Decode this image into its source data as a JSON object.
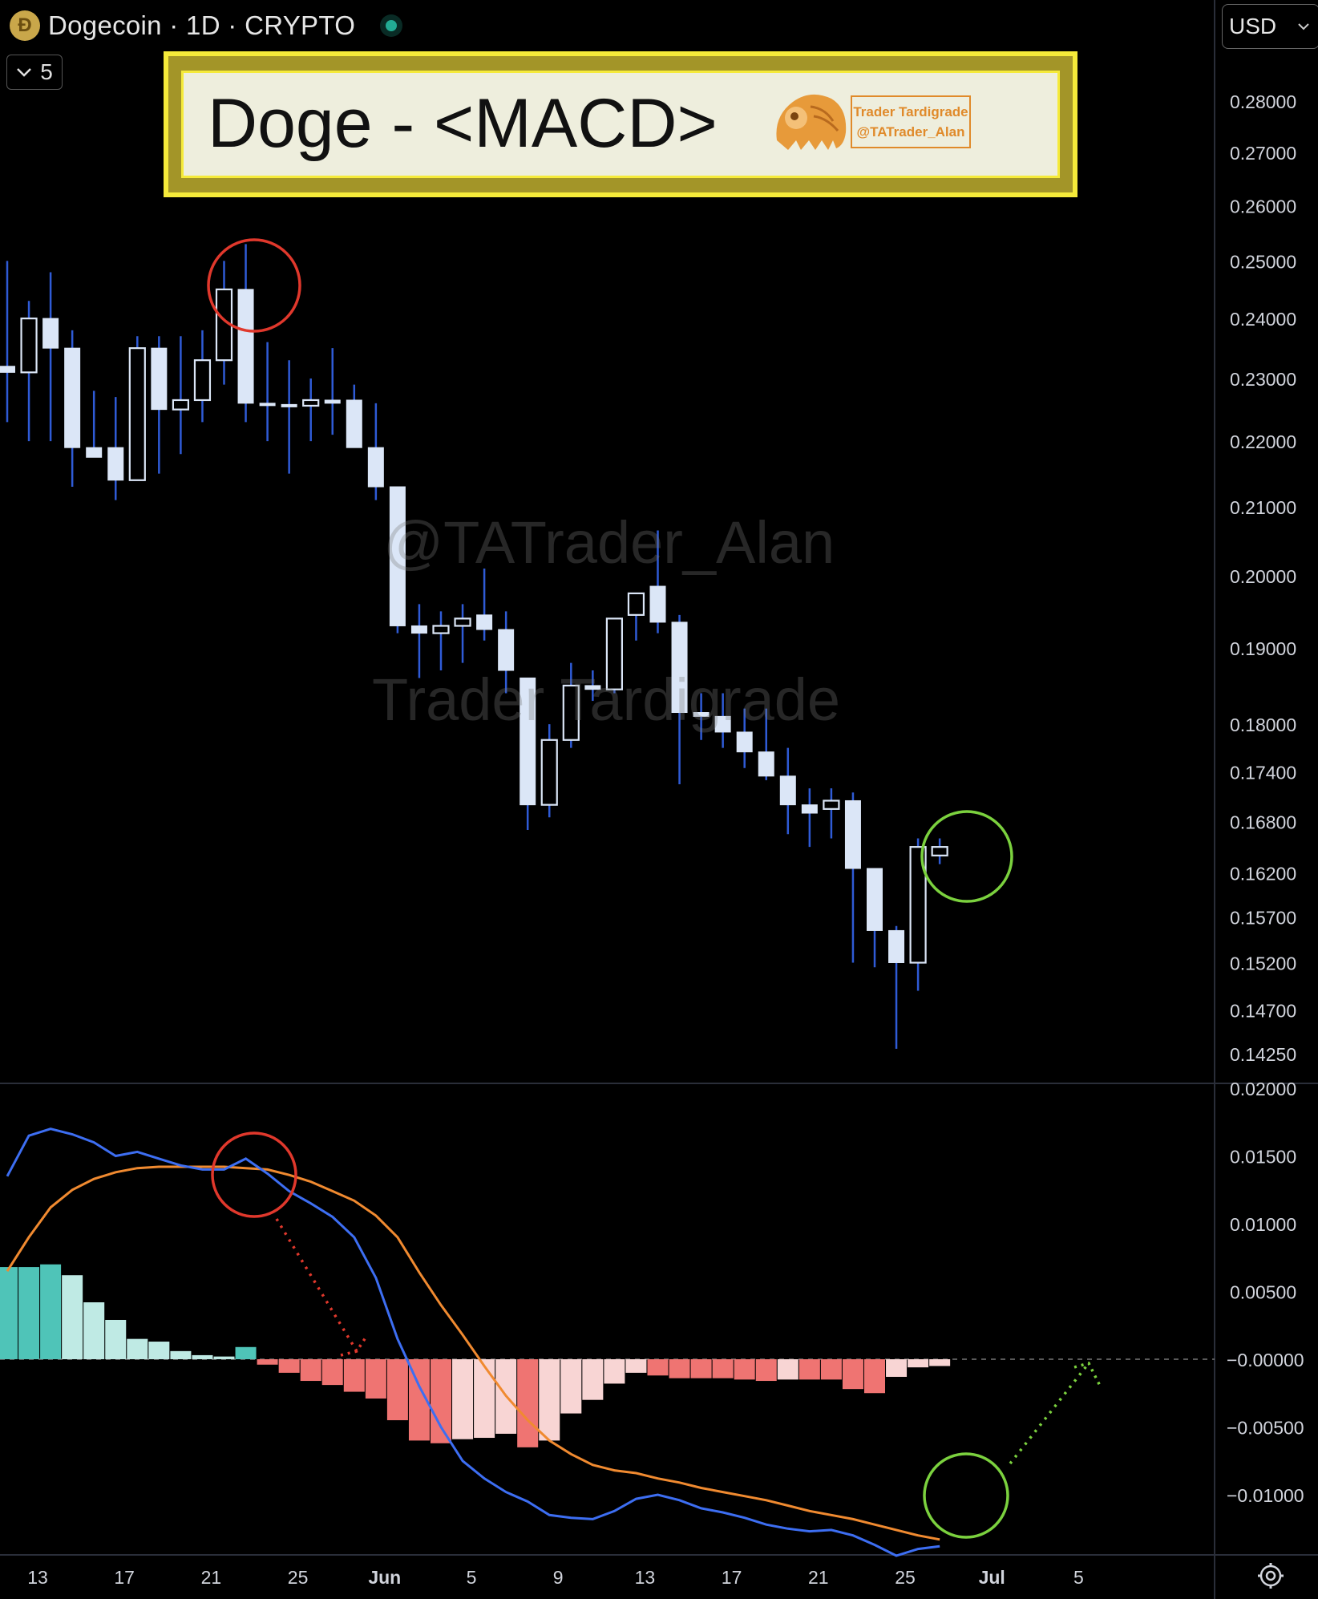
{
  "header": {
    "coin_icon": "dogecoin-coin-icon",
    "title": "Dogecoin · 1D · CRYPTO",
    "status_color": "#22ab94",
    "hide_count": "5"
  },
  "currency": {
    "label": "USD"
  },
  "banner": {
    "title": "Doge - <MACD>",
    "brand_line1": "Trader Tardigrade",
    "brand_line2": "@TATrader_Alan"
  },
  "watermarks": {
    "line1": "@TATrader_Alan",
    "line2": "Trader Tardigrade"
  },
  "colors": {
    "candle_body": "#dbe6f7",
    "candle_wick": "#2f5bd6",
    "macd_line": "#3d6ef2",
    "signal_line": "#f08a30",
    "hist_pos_strong": "#4fc4b8",
    "hist_pos_weak": "#bfeae4",
    "hist_neg_strong": "#ef7472",
    "hist_neg_weak": "#f8d5d4",
    "circle_red": "#e0382c",
    "circle_green": "#7bd13e"
  },
  "chart_data": [
    {
      "type": "candlestick",
      "title": "",
      "price_axis_ticks": [
        "0.28000",
        "0.27000",
        "0.26000",
        "0.25000",
        "0.24000",
        "0.23000",
        "0.22000",
        "0.21000",
        "0.20000",
        "0.19000",
        "0.18000",
        "0.17400",
        "0.16800",
        "0.16200",
        "0.15700",
        "0.15200",
        "0.14700",
        "0.14250"
      ],
      "price_axis_values": [
        0.28,
        0.27,
        0.26,
        0.25,
        0.24,
        0.23,
        0.22,
        0.21,
        0.2,
        0.19,
        0.18,
        0.174,
        0.168,
        0.162,
        0.157,
        0.152,
        0.147,
        0.1425
      ],
      "ylim": [
        0.138,
        0.29
      ],
      "log_scale": true,
      "date_ticks": [
        "13",
        "17",
        "21",
        "25",
        "Jun",
        "5",
        "9",
        "13",
        "17",
        "21",
        "25",
        "Jul",
        "5"
      ],
      "date_tick_index": [
        0,
        4,
        8,
        12,
        16,
        20,
        24,
        28,
        32,
        36,
        40,
        44,
        48
      ],
      "candles": [
        {
          "o": 0.232,
          "h": 0.25,
          "l": 0.223,
          "c": 0.231
        },
        {
          "o": 0.231,
          "h": 0.243,
          "l": 0.22,
          "c": 0.24
        },
        {
          "o": 0.24,
          "h": 0.248,
          "l": 0.22,
          "c": 0.235
        },
        {
          "o": 0.235,
          "h": 0.238,
          "l": 0.213,
          "c": 0.219
        },
        {
          "o": 0.219,
          "h": 0.228,
          "l": 0.218,
          "c": 0.2175
        },
        {
          "o": 0.219,
          "h": 0.227,
          "l": 0.211,
          "c": 0.214
        },
        {
          "o": 0.214,
          "h": 0.237,
          "l": 0.214,
          "c": 0.235
        },
        {
          "o": 0.235,
          "h": 0.237,
          "l": 0.215,
          "c": 0.225
        },
        {
          "o": 0.225,
          "h": 0.237,
          "l": 0.218,
          "c": 0.2265
        },
        {
          "o": 0.2265,
          "h": 0.238,
          "l": 0.223,
          "c": 0.233
        },
        {
          "o": 0.233,
          "h": 0.25,
          "l": 0.229,
          "c": 0.245
        },
        {
          "o": 0.245,
          "h": 0.253,
          "l": 0.223,
          "c": 0.226
        },
        {
          "o": 0.226,
          "h": 0.236,
          "l": 0.22,
          "c": 0.2258
        },
        {
          "o": 0.2258,
          "h": 0.233,
          "l": 0.215,
          "c": 0.2256
        },
        {
          "o": 0.2256,
          "h": 0.23,
          "l": 0.22,
          "c": 0.2265
        },
        {
          "o": 0.2265,
          "h": 0.235,
          "l": 0.221,
          "c": 0.226
        },
        {
          "o": 0.2265,
          "h": 0.229,
          "l": 0.219,
          "c": 0.219
        },
        {
          "o": 0.219,
          "h": 0.226,
          "l": 0.211,
          "c": 0.213
        },
        {
          "o": 0.213,
          "h": 0.213,
          "l": 0.192,
          "c": 0.193
        },
        {
          "o": 0.193,
          "h": 0.196,
          "l": 0.186,
          "c": 0.192
        },
        {
          "o": 0.192,
          "h": 0.195,
          "l": 0.187,
          "c": 0.193
        },
        {
          "o": 0.193,
          "h": 0.196,
          "l": 0.188,
          "c": 0.194
        },
        {
          "o": 0.1945,
          "h": 0.201,
          "l": 0.191,
          "c": 0.1925
        },
        {
          "o": 0.1925,
          "h": 0.195,
          "l": 0.184,
          "c": 0.187
        },
        {
          "o": 0.186,
          "h": 0.186,
          "l": 0.167,
          "c": 0.17
        },
        {
          "o": 0.17,
          "h": 0.18,
          "l": 0.1685,
          "c": 0.178
        },
        {
          "o": 0.178,
          "h": 0.188,
          "l": 0.177,
          "c": 0.185
        },
        {
          "o": 0.185,
          "h": 0.187,
          "l": 0.183,
          "c": 0.1845
        },
        {
          "o": 0.1845,
          "h": 0.194,
          "l": 0.184,
          "c": 0.194
        },
        {
          "o": 0.1945,
          "h": 0.196,
          "l": 0.191,
          "c": 0.1975
        },
        {
          "o": 0.1985,
          "h": 0.2065,
          "l": 0.192,
          "c": 0.1935
        },
        {
          "o": 0.1935,
          "h": 0.1945,
          "l": 0.1725,
          "c": 0.1815
        },
        {
          "o": 0.1815,
          "h": 0.184,
          "l": 0.178,
          "c": 0.181
        },
        {
          "o": 0.181,
          "h": 0.184,
          "l": 0.177,
          "c": 0.179
        },
        {
          "o": 0.179,
          "h": 0.182,
          "l": 0.1745,
          "c": 0.1765
        },
        {
          "o": 0.1765,
          "h": 0.182,
          "l": 0.173,
          "c": 0.1735
        },
        {
          "o": 0.1735,
          "h": 0.177,
          "l": 0.1665,
          "c": 0.17
        },
        {
          "o": 0.17,
          "h": 0.172,
          "l": 0.165,
          "c": 0.169
        },
        {
          "o": 0.1695,
          "h": 0.172,
          "l": 0.166,
          "c": 0.1705
        },
        {
          "o": 0.1705,
          "h": 0.1715,
          "l": 0.152,
          "c": 0.1625
        },
        {
          "o": 0.1625,
          "h": 0.1625,
          "l": 0.1515,
          "c": 0.1555
        },
        {
          "o": 0.1555,
          "h": 0.156,
          "l": 0.143,
          "c": 0.152
        },
        {
          "o": 0.152,
          "h": 0.166,
          "l": 0.149,
          "c": 0.165
        },
        {
          "o": 0.164,
          "h": 0.166,
          "l": 0.163,
          "c": 0.165
        }
      ]
    },
    {
      "type": "macd",
      "title": "",
      "y_axis_ticks": [
        "0.02000",
        "0.01500",
        "0.01000",
        "0.00500",
        "−0.00000",
        "−0.00500",
        "−0.01000"
      ],
      "y_axis_values": [
        0.02,
        0.015,
        0.01,
        0.005,
        0,
        -0.005,
        -0.01
      ],
      "ylim": [
        -0.0145,
        0.0205
      ],
      "zero_line_dashed": true,
      "series": [
        {
          "name": "",
          "role": "macd",
          "values": [
            0.0135,
            0.0165,
            0.017,
            0.0166,
            0.016,
            0.015,
            0.0153,
            0.0148,
            0.0143,
            0.014,
            0.014,
            0.0148,
            0.0137,
            0.0124,
            0.0115,
            0.0105,
            0.009,
            0.006,
            0.0015,
            -0.002,
            -0.005,
            -0.0075,
            -0.0088,
            -0.0098,
            -0.0105,
            -0.0115,
            -0.0117,
            -0.0118,
            -0.0112,
            -0.0103,
            -0.01,
            -0.0104,
            -0.011,
            -0.0113,
            -0.0117,
            -0.0122,
            -0.0125,
            -0.0127,
            -0.0126,
            -0.013,
            -0.0137,
            -0.0145,
            -0.014,
            -0.0138
          ]
        },
        {
          "name": "",
          "role": "signal",
          "values": [
            0.0065,
            0.009,
            0.0112,
            0.0125,
            0.0133,
            0.0138,
            0.0141,
            0.0142,
            0.0142,
            0.0142,
            0.0142,
            0.0141,
            0.014,
            0.0136,
            0.0131,
            0.0124,
            0.0117,
            0.0106,
            0.009,
            0.0064,
            0.004,
            0.0018,
            -0.0005,
            -0.0027,
            -0.0045,
            -0.006,
            -0.007,
            -0.0078,
            -0.0082,
            -0.0084,
            -0.0088,
            -0.0091,
            -0.0095,
            -0.0098,
            -0.0101,
            -0.0104,
            -0.0108,
            -0.0112,
            -0.0115,
            -0.0118,
            -0.0122,
            -0.0126,
            -0.013,
            -0.0133
          ]
        }
      ],
      "histogram": [
        0.0068,
        0.0068,
        0.007,
        0.0062,
        0.0042,
        0.0029,
        0.0015,
        0.0013,
        0.0006,
        0.0003,
        0.0002,
        0.0009,
        -0.0004,
        -0.001,
        -0.0016,
        -0.0019,
        -0.0024,
        -0.0029,
        -0.0045,
        -0.006,
        -0.0062,
        -0.0059,
        -0.0058,
        -0.0055,
        -0.0065,
        -0.006,
        -0.004,
        -0.003,
        -0.0018,
        -0.001,
        -0.0012,
        -0.0014,
        -0.0014,
        -0.0014,
        -0.0015,
        -0.0016,
        -0.0015,
        -0.0015,
        -0.0015,
        -0.0022,
        -0.0025,
        -0.0013,
        -0.0006,
        -0.0005
      ]
    }
  ]
}
